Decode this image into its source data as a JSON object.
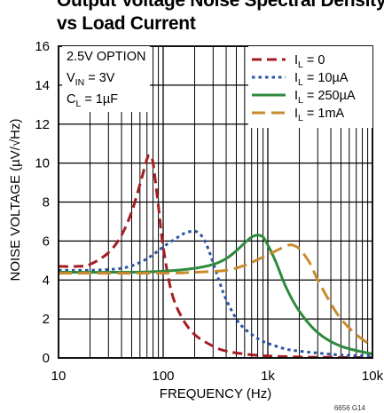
{
  "chart_data": {
    "type": "line",
    "title": "Output Voltage Noise Spectral Density\nvs Load Current",
    "xlabel": "FREQUENCY (Hz)",
    "ylabel": "NOISE VOLTAGE (µV/√Hz)",
    "xscale": "log",
    "xlim": [
      10,
      10000
    ],
    "ylim": [
      0,
      16
    ],
    "xticks": [
      10,
      100,
      1000,
      10000
    ],
    "xtick_labels": [
      "10",
      "100",
      "1k",
      "10k"
    ],
    "yticks": [
      0,
      2,
      4,
      6,
      8,
      10,
      12,
      14,
      16
    ],
    "ytick_labels": [
      "0",
      "2",
      "4",
      "6",
      "8",
      "10",
      "12",
      "14",
      "16"
    ],
    "grid": true,
    "legend_position": "top-right",
    "conditions": [
      "2.5V OPTION",
      "VIN = 3V",
      "CL = 1µF"
    ],
    "figure_id": "6656 G14",
    "series": [
      {
        "name": "IL = 0",
        "color": "#a51d22",
        "dash": "long-dash",
        "x": [
          10,
          15,
          20,
          30,
          40,
          50,
          60,
          70,
          75,
          80,
          90,
          100,
          120,
          150,
          200,
          300,
          400,
          600,
          1000,
          2000,
          4000,
          10000
        ],
        "y": [
          4.7,
          4.7,
          4.8,
          5.4,
          6.3,
          7.5,
          8.9,
          10.2,
          10.4,
          10.0,
          7.8,
          5.7,
          3.4,
          2.1,
          1.2,
          0.6,
          0.35,
          0.2,
          0.1,
          0.05,
          0.03,
          0.02
        ]
      },
      {
        "name": "IL = 10µA",
        "color": "#2a52a6",
        "dash": "dotted",
        "x": [
          10,
          20,
          40,
          60,
          80,
          100,
          130,
          160,
          200,
          230,
          260,
          300,
          350,
          400,
          500,
          600,
          800,
          1000,
          1500,
          2000,
          3000,
          5000,
          10000
        ],
        "y": [
          4.5,
          4.5,
          4.6,
          4.9,
          5.3,
          5.7,
          6.1,
          6.4,
          6.5,
          6.3,
          5.8,
          4.9,
          3.8,
          3.0,
          2.0,
          1.5,
          1.0,
          0.75,
          0.45,
          0.35,
          0.25,
          0.15,
          0.1
        ]
      },
      {
        "name": "IL = 250µA",
        "color": "#2f8a3e",
        "dash": "solid",
        "x": [
          10,
          50,
          100,
          200,
          300,
          400,
          500,
          600,
          700,
          800,
          900,
          1000,
          1200,
          1500,
          2000,
          3000,
          5000,
          10000
        ],
        "y": [
          4.4,
          4.4,
          4.45,
          4.6,
          4.8,
          5.1,
          5.5,
          5.9,
          6.2,
          6.3,
          6.2,
          5.8,
          4.9,
          3.6,
          2.4,
          1.3,
          0.6,
          0.2
        ]
      },
      {
        "name": "IL = 1mA",
        "color": "#c98a2e",
        "dash": "dashed",
        "x": [
          10,
          100,
          200,
          400,
          600,
          800,
          1000,
          1200,
          1500,
          1700,
          2000,
          2500,
          3000,
          4000,
          5000,
          7000,
          10000
        ],
        "y": [
          4.35,
          4.35,
          4.4,
          4.5,
          4.75,
          5.05,
          5.3,
          5.5,
          5.75,
          5.8,
          5.6,
          4.9,
          4.0,
          2.8,
          2.0,
          1.2,
          0.6
        ]
      }
    ]
  }
}
